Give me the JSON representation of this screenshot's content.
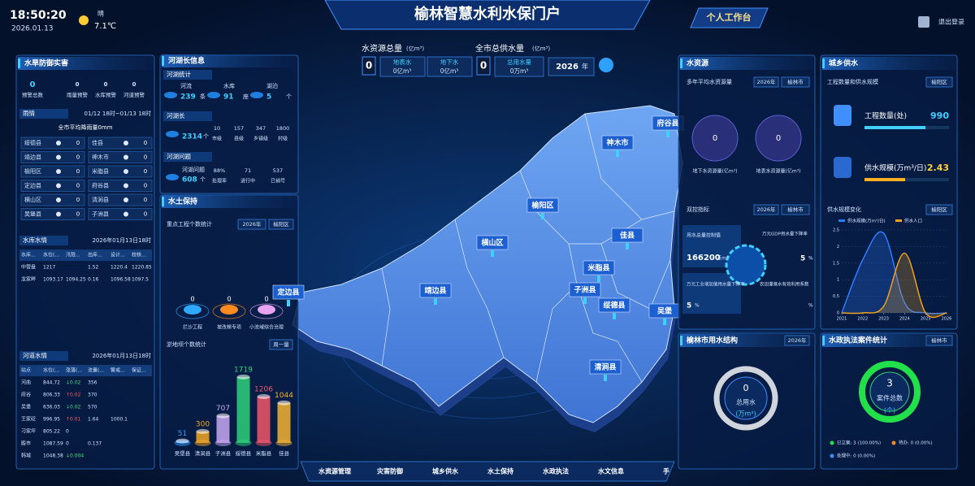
{
  "header": {
    "time": "18:50:20",
    "date": "2026.01.13",
    "weather": "晴",
    "temperature": "7.1℃",
    "title": "榆林智慧水利水保门户",
    "workspace": "个人工作台",
    "logout": "退出登录"
  },
  "overview": {
    "resource": {
      "label": "水资源总量",
      "unit": "(亿m³)",
      "value": "0",
      "items": [
        {
          "label": "地表水",
          "value": "0亿m³"
        },
        {
          "label": "地下水",
          "value": "0亿m³"
        }
      ]
    },
    "supply": {
      "label": "全市总供水量",
      "unit": "(亿m³)",
      "value": "0",
      "item": {
        "label": "总用水量",
        "value": "0万m³"
      },
      "year": "2026",
      "year_unit": "年"
    }
  },
  "flood": {
    "title": "水旱防御实害",
    "stats": [
      {
        "value": "0",
        "label": "预警总数"
      },
      {
        "value": "0",
        "label": "雨量预警"
      },
      {
        "value": "0",
        "label": "水库预警"
      },
      {
        "value": "0",
        "label": "河道预警"
      }
    ]
  },
  "rain": {
    "title": "雨情",
    "range": "01/12 18时~01/13 18时",
    "average": "全市平均降雨量0mm",
    "stations": [
      {
        "name": "绥德县",
        "value": "0"
      },
      {
        "name": "佳县",
        "value": "0"
      },
      {
        "name": "靖边县",
        "value": "0"
      },
      {
        "name": "神木市",
        "value": "0"
      },
      {
        "name": "榆阳区",
        "value": "0"
      },
      {
        "name": "米脂县",
        "value": "0"
      },
      {
        "name": "定边县",
        "value": "0"
      },
      {
        "name": "府谷县",
        "value": "0"
      },
      {
        "name": "横山区",
        "value": "0"
      },
      {
        "name": "清涧县",
        "value": "0"
      },
      {
        "name": "吴堡县",
        "value": "0"
      },
      {
        "name": "子洲县",
        "value": "0"
      }
    ]
  },
  "reservoir": {
    "title": "水库水情",
    "time": "2026年01月13日18时",
    "headers": [
      "水库...",
      "水位(...",
      "汛限...",
      "出库...",
      "设计...",
      "校核..."
    ],
    "rows": [
      [
        "中营盘",
        "1217",
        "",
        "1.52",
        "1220.4",
        "1220.85"
      ],
      [
        "龙家畔",
        "1093.17",
        "1094.25",
        "0.16",
        "1096.58",
        "1097.5"
      ]
    ]
  },
  "river": {
    "title": "河道水情",
    "time": "2026年01月13日18时",
    "headers": [
      "站点",
      "水位(...",
      "涨落(...",
      "流量(...",
      "警戒...",
      "保证..."
    ],
    "rows": [
      [
        "河曲",
        "844.72",
        "↓0.02",
        "356"
      ],
      [
        "府谷",
        "806.33",
        "↑0.02",
        "370"
      ],
      [
        "吴堡",
        "636.03",
        "↓0.02",
        "570"
      ],
      [
        "王家砭",
        "996.95",
        "↑0.01",
        "1.64",
        "1000.1"
      ],
      [
        "刁家坪",
        "805.22",
        "0"
      ],
      [
        "殿市",
        "1087.59",
        "0",
        "0.137"
      ],
      [
        "韩城",
        "1048.38",
        "↓0.004"
      ]
    ]
  },
  "rivers_lakes": {
    "title": "河湖长信息",
    "stats_title": "河湖统计",
    "stats": [
      {
        "label": "河流",
        "value": "239",
        "unit": "条"
      },
      {
        "label": "水库",
        "value": "91",
        "unit": "座"
      },
      {
        "label": "湖泊",
        "value": "5",
        "unit": "个"
      }
    ],
    "chiefs_title": "河湖长",
    "chiefs": {
      "value": "2314",
      "unit": "个",
      "items": [
        {
          "value": "10",
          "label": "市级"
        },
        {
          "value": "157",
          "label": "县级"
        },
        {
          "value": "347",
          "label": "乡镇级"
        },
        {
          "value": "1800",
          "label": "村级"
        }
      ]
    },
    "issues_title": "河湖问题",
    "issues": {
      "label": "河湖问题",
      "value": "608",
      "unit": "个",
      "items": [
        {
          "value": "88%",
          "label": "处理率"
        },
        {
          "value": "71",
          "label": "进行中"
        },
        {
          "value": "537",
          "label": "已销号"
        }
      ]
    }
  },
  "soil": {
    "title": "水土保持",
    "projects_title": "重点工程个数统计",
    "year": "2026年",
    "area": "榆阳区",
    "projects": [
      {
        "value": "0",
        "label": "拦沙工程"
      },
      {
        "value": "0",
        "label": "坡改梯专项"
      },
      {
        "value": "0",
        "label": "小流域综合治理"
      }
    ],
    "dams_filter": "周一量"
  },
  "map": {
    "counties": [
      "府谷县",
      "神木市",
      "榆阳区",
      "横山区",
      "佳县",
      "靖边县",
      "米脂县",
      "子洲县",
      "绥德县",
      "吴堡",
      "清涧县",
      "定边县"
    ]
  },
  "nav": [
    "水资源管理",
    "灾害防御",
    "城乡供水",
    "水土保持",
    "水政执法",
    "水文信息",
    "手"
  ],
  "water_resource": {
    "title": "水资源",
    "avg_title": "多年平均水资源量",
    "year": "2026年",
    "area": "榆林市",
    "items": [
      {
        "value": "0",
        "label": "地下水资源量(亿m³)"
      },
      {
        "value": "0",
        "label": "地表水资源量(亿m³)"
      }
    ],
    "control_title": "双控指标",
    "control_year": "2026年",
    "control_area": "榆林市",
    "total_label": "用水总量控制值",
    "total_value": "166200",
    "total_unit": "万m³",
    "indicators": [
      {
        "label": "万元GDP用水量下降率",
        "value": "5",
        "unit": "%"
      },
      {
        "label": "万元工业增加值用水量下降率",
        "value": "5",
        "unit": "%"
      },
      {
        "label": "农田灌溉水有效利用系数",
        "unit": "%"
      }
    ]
  },
  "usage": {
    "title": "榆林市用水结构",
    "year": "2026年",
    "value": "0",
    "label": "总用水",
    "unit": "(万m³)"
  },
  "supply": {
    "title": "城乡供水",
    "scale_title": "工程数量和供水规模",
    "area": "榆阳区",
    "items": [
      {
        "label": "工程数量(处)",
        "value": "990"
      },
      {
        "label": "供水规模(万m³/日)",
        "value": "2.43"
      }
    ],
    "change_area": "榆阳区"
  },
  "cases": {
    "title": "水政执法案件统计",
    "area": "榆林市",
    "value": "3",
    "label": "案件总数",
    "unit": "(个)",
    "legend": [
      "已立案: 3 (100.00%)",
      "待办: 0 (0.00%)",
      "处理中: 0 (0.00%)"
    ]
  },
  "chart_data": [
    {
      "type": "bar",
      "title": "淤地坝个数统计",
      "categories": [
        "吴堡县",
        "清涧县",
        "子洲县",
        "绥德县",
        "米脂县",
        "佳县"
      ],
      "values": [
        51,
        300,
        707,
        1719,
        1206,
        1044
      ],
      "colors": [
        "#2f9bff",
        "#f5a623",
        "#c9a8f2",
        "#2fd07a",
        "#f0566a",
        "#f3b332"
      ],
      "ylim": [
        0,
        1800
      ]
    },
    {
      "type": "line",
      "title": "供水规模变化",
      "x": [
        2021,
        2022,
        2023,
        2024,
        2025,
        2026
      ],
      "xlim": [
        2021,
        2026
      ],
      "xticks": [
        2021,
        2022,
        2023,
        2024,
        2025,
        2026
      ],
      "ylim": [
        0,
        2.5
      ],
      "yticks": [
        0,
        0.5,
        1,
        1.5,
        2,
        2.5
      ],
      "series": [
        {
          "name": "供水规模(万m³/日)",
          "color": "#2f7bff",
          "values": [
            0,
            1.6,
            2.4,
            0.3,
            0,
            0
          ]
        },
        {
          "name": "供水人口",
          "color": "#f0a020",
          "values": [
            0,
            0,
            0.2,
            1.8,
            0,
            0
          ]
        }
      ]
    }
  ]
}
